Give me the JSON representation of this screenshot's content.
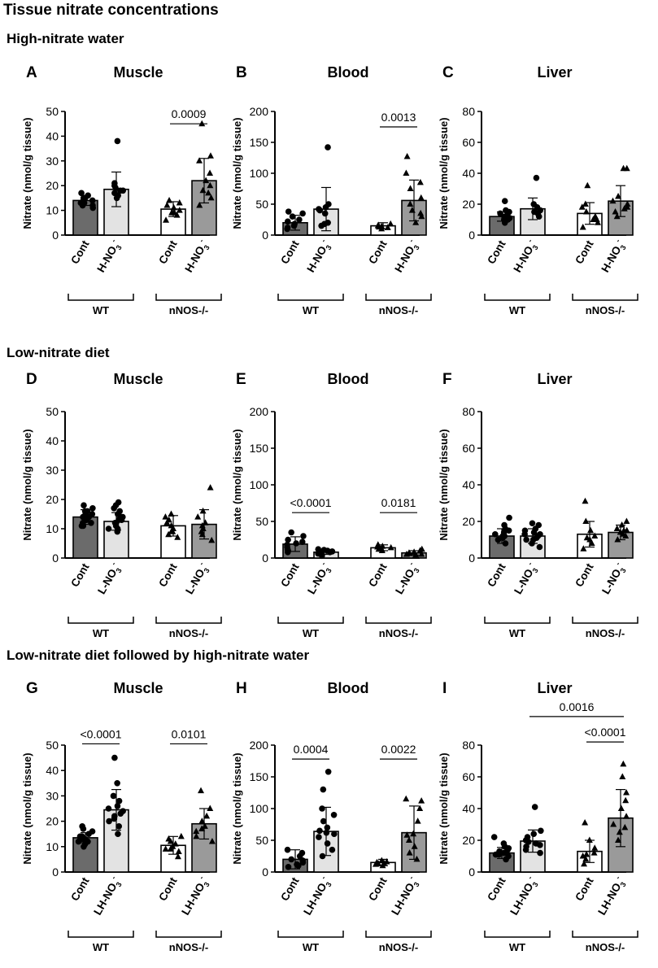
{
  "figure": {
    "title": "Tissue nitrate concentrations",
    "sections": [
      "High-nitrate water",
      "Low-nitrate diet",
      "Low-nitrate diet followed by high-nitrate water"
    ],
    "y_axis_label": "Nitrate (nmol/g tissue)",
    "group_labels": [
      "WT",
      "nNOS-/-"
    ],
    "colors": {
      "cont_wt": "#6b6b6b",
      "treat_wt": "#e3e3e3",
      "cont_nnos": "#ffffff",
      "treat_nnos": "#9a9a9a",
      "axis": "#000000"
    }
  },
  "chart_data": [
    {
      "id": "A",
      "type": "bar",
      "title": "Muscle",
      "categories": [
        "Cont",
        "H-NO3-",
        "Cont",
        "H-NO3-"
      ],
      "category_labels": [
        [
          "Cont",
          ""
        ],
        [
          "H-NO",
          ""
        ],
        [
          "Cont",
          ""
        ],
        [
          "H-NO",
          ""
        ]
      ],
      "ion_marks": [
        null,
        {
          "sub": "3",
          "sup": "-"
        },
        null,
        {
          "sub": "3",
          "sup": "-"
        }
      ],
      "groups": [
        "WT",
        "nNOS-/-"
      ],
      "ylabel": "Nitrate (nmol/g tissue)",
      "ylim": [
        0,
        50
      ],
      "yticks": [
        0,
        10,
        20,
        30,
        40,
        50
      ],
      "values": [
        14,
        18.5,
        10.5,
        22
      ],
      "errors": [
        2,
        7,
        3,
        9
      ],
      "points": [
        [
          12,
          13,
          14,
          15,
          16,
          17,
          11,
          13,
          14,
          15,
          12
        ],
        [
          15,
          17,
          18,
          19,
          20,
          38,
          16,
          18,
          21
        ],
        [
          8,
          9,
          10,
          11,
          12,
          13,
          14,
          6,
          9
        ],
        [
          15,
          17,
          20,
          22,
          25,
          30,
          32,
          45,
          18,
          12
        ]
      ],
      "annotations": [
        {
          "label": "0.0009",
          "from": 2,
          "to": 3,
          "y": 45
        }
      ]
    },
    {
      "id": "B",
      "type": "bar",
      "title": "Blood",
      "categories": [
        "Cont",
        "H-NO3-",
        "Cont",
        "H-NO3-"
      ],
      "category_labels": [
        [
          "Cont",
          ""
        ],
        [
          "H-NO",
          ""
        ],
        [
          "Cont",
          ""
        ],
        [
          "H-NO",
          ""
        ]
      ],
      "ion_marks": [
        null,
        {
          "sub": "3",
          "sup": "-"
        },
        null,
        {
          "sub": "3",
          "sup": "-"
        }
      ],
      "groups": [
        "WT",
        "nNOS-/-"
      ],
      "ylabel": "Nitrate (nmol/g tissue)",
      "ylim": [
        0,
        200
      ],
      "yticks": [
        0,
        50,
        100,
        150,
        200
      ],
      "values": [
        20,
        42,
        15,
        56
      ],
      "errors": [
        12,
        35,
        5,
        33
      ],
      "points": [
        [
          10,
          15,
          18,
          22,
          25,
          30,
          35,
          38,
          12
        ],
        [
          15,
          20,
          35,
          40,
          45,
          50,
          142,
          18,
          42
        ],
        [
          10,
          12,
          14,
          15,
          16,
          18,
          13
        ],
        [
          20,
          30,
          40,
          50,
          60,
          75,
          85,
          100,
          127,
          35
        ]
      ],
      "annotations": [
        {
          "label": "0.0013",
          "from": 2,
          "to": 3,
          "y": 175
        }
      ]
    },
    {
      "id": "C",
      "type": "bar",
      "title": "Liver",
      "categories": [
        "Cont",
        "H-NO3-",
        "Cont",
        "H-NO3-"
      ],
      "category_labels": [
        [
          "Cont",
          ""
        ],
        [
          "H-NO",
          ""
        ],
        [
          "Cont",
          ""
        ],
        [
          "H-NO",
          ""
        ]
      ],
      "ion_marks": [
        null,
        {
          "sub": "3",
          "sup": "-"
        },
        null,
        {
          "sub": "3",
          "sup": "-"
        }
      ],
      "groups": [
        "WT",
        "nNOS-/-"
      ],
      "ylabel": "Nitrate (nmol/g tissue)",
      "ylim": [
        0,
        80
      ],
      "yticks": [
        0,
        20,
        40,
        60,
        80
      ],
      "values": [
        12,
        17,
        14,
        22
      ],
      "errors": [
        3,
        7,
        7,
        10
      ],
      "points": [
        [
          8,
          10,
          11,
          12,
          13,
          14,
          15,
          16,
          22,
          10
        ],
        [
          12,
          14,
          16,
          18,
          20,
          37,
          15
        ],
        [
          5,
          8,
          10,
          12,
          15,
          18,
          20,
          32,
          10
        ],
        [
          12,
          15,
          18,
          20,
          22,
          25,
          43,
          43,
          17
        ]
      ],
      "annotations": []
    },
    {
      "id": "D",
      "type": "bar",
      "title": "Muscle",
      "categories": [
        "Cont",
        "L-NO3-",
        "Cont",
        "L-NO3-"
      ],
      "category_labels": [
        [
          "Cont",
          ""
        ],
        [
          "L-NO",
          ""
        ],
        [
          "Cont",
          ""
        ],
        [
          "L-NO",
          ""
        ]
      ],
      "ion_marks": [
        null,
        {
          "sub": "3",
          "sup": "-"
        },
        null,
        {
          "sub": "3",
          "sup": "-"
        }
      ],
      "groups": [
        "WT",
        "nNOS-/-"
      ],
      "ylabel": "Nitrate (nmol/g tissue)",
      "ylim": [
        0,
        50
      ],
      "yticks": [
        0,
        10,
        20,
        30,
        40,
        50
      ],
      "values": [
        14,
        12.5,
        11,
        11.5
      ],
      "errors": [
        2.5,
        3,
        3.5,
        5
      ],
      "points": [
        [
          11,
          12,
          13,
          14,
          15,
          16,
          17,
          18,
          12,
          13,
          14,
          15,
          16,
          11
        ],
        [
          9,
          10,
          11,
          12,
          13,
          14,
          15,
          16,
          17,
          18,
          19,
          10,
          12,
          13,
          14
        ],
        [
          7,
          8,
          9,
          10,
          11,
          12,
          13,
          14,
          15,
          9
        ],
        [
          6,
          8,
          10,
          12,
          14,
          16,
          24,
          9,
          11
        ]
      ],
      "annotations": []
    },
    {
      "id": "E",
      "type": "bar",
      "title": "Blood",
      "categories": [
        "Cont",
        "L-NO3-",
        "Cont",
        "L-NO3-"
      ],
      "category_labels": [
        [
          "Cont",
          ""
        ],
        [
          "L-NO",
          ""
        ],
        [
          "Cont",
          ""
        ],
        [
          "L-NO",
          ""
        ]
      ],
      "ion_marks": [
        null,
        {
          "sub": "3",
          "sup": "-"
        },
        null,
        {
          "sub": "3",
          "sup": "-"
        }
      ],
      "groups": [
        "WT",
        "nNOS-/-"
      ],
      "ylabel": "Nitrate (nmol/g tissue)",
      "ylim": [
        0,
        200
      ],
      "yticks": [
        0,
        50,
        100,
        150,
        200
      ],
      "values": [
        19,
        8,
        14,
        7
      ],
      "errors": [
        10,
        3,
        4,
        3
      ],
      "points": [
        [
          8,
          10,
          12,
          15,
          18,
          20,
          22,
          25,
          30,
          35
        ],
        [
          3,
          5,
          6,
          7,
          8,
          9,
          10,
          11,
          12,
          8
        ],
        [
          10,
          12,
          14,
          15,
          16,
          18,
          12
        ],
        [
          3,
          4,
          5,
          6,
          7,
          8,
          10,
          12,
          5
        ]
      ],
      "annotations": [
        {
          "label": "<0.0001",
          "from": 0,
          "to": 1,
          "y": 62
        },
        {
          "label": "0.0181",
          "from": 2,
          "to": 3,
          "y": 62
        }
      ]
    },
    {
      "id": "F",
      "type": "bar",
      "title": "Liver",
      "categories": [
        "Cont",
        "L-NO3-",
        "Cont",
        "L-NO3-"
      ],
      "category_labels": [
        [
          "Cont",
          ""
        ],
        [
          "L-NO",
          ""
        ],
        [
          "Cont",
          ""
        ],
        [
          "L-NO",
          ""
        ]
      ],
      "ion_marks": [
        null,
        {
          "sub": "3",
          "sup": "-"
        },
        null,
        {
          "sub": "3",
          "sup": "-"
        }
      ],
      "groups": [
        "WT",
        "nNOS-/-"
      ],
      "ylabel": "Nitrate (nmol/g tissue)",
      "ylim": [
        0,
        80
      ],
      "yticks": [
        0,
        20,
        40,
        60,
        80
      ],
      "values": [
        12,
        12,
        13,
        14
      ],
      "errors": [
        4,
        4,
        7,
        4
      ],
      "points": [
        [
          8,
          10,
          11,
          12,
          13,
          14,
          15,
          16,
          18,
          22,
          12
        ],
        [
          6,
          8,
          10,
          11,
          12,
          13,
          14,
          15,
          16,
          18,
          19,
          10,
          13
        ],
        [
          5,
          8,
          10,
          12,
          15,
          20,
          31,
          11
        ],
        [
          10,
          12,
          14,
          15,
          16,
          18,
          20,
          13,
          15
        ]
      ],
      "annotations": []
    },
    {
      "id": "G",
      "type": "bar",
      "title": "Muscle",
      "categories": [
        "Cont",
        "LH-NO3-",
        "Cont",
        "LH-NO3-"
      ],
      "category_labels": [
        [
          "Cont",
          ""
        ],
        [
          "LH-NO",
          ""
        ],
        [
          "Cont",
          ""
        ],
        [
          "LH-NO",
          ""
        ]
      ],
      "ion_marks": [
        null,
        {
          "sub": "3",
          "sup": "-"
        },
        null,
        {
          "sub": "3",
          "sup": "-"
        }
      ],
      "groups": [
        "WT",
        "nNOS-/-"
      ],
      "ylabel": "Nitrate (nmol/g tissue)",
      "ylim": [
        0,
        50
      ],
      "yticks": [
        0,
        10,
        20,
        30,
        40,
        50
      ],
      "values": [
        13.5,
        24.5,
        10.5,
        19
      ],
      "errors": [
        2,
        8,
        3.5,
        6
      ],
      "points": [
        [
          10,
          11,
          12,
          13,
          14,
          15,
          16,
          17,
          18,
          12,
          13,
          14
        ],
        [
          15,
          18,
          20,
          22,
          24,
          25,
          26,
          28,
          30,
          35,
          45,
          21,
          23
        ],
        [
          6,
          8,
          9,
          10,
          11,
          12,
          13,
          14,
          9
        ],
        [
          12,
          14,
          16,
          18,
          20,
          22,
          25,
          32,
          17
        ]
      ],
      "annotations": [
        {
          "label": "<0.0001",
          "from": 0,
          "to": 1,
          "y": 50.5
        },
        {
          "label": "0.0101",
          "from": 2,
          "to": 3,
          "y": 50.5
        }
      ]
    },
    {
      "id": "H",
      "type": "bar",
      "title": "Blood",
      "categories": [
        "Cont",
        "LH-NO3-",
        "Cont",
        "LH-NO3-"
      ],
      "category_labels": [
        [
          "Cont",
          ""
        ],
        [
          "LH-NO",
          ""
        ],
        [
          "Cont",
          ""
        ],
        [
          "LH-NO",
          ""
        ]
      ],
      "ion_marks": [
        null,
        {
          "sub": "3",
          "sup": "-"
        },
        null,
        {
          "sub": "3",
          "sup": "-"
        }
      ],
      "groups": [
        "WT",
        "nNOS-/-"
      ],
      "ylabel": "Nitrate (nmol/g tissue)",
      "ylim": [
        0,
        200
      ],
      "yticks": [
        0,
        50,
        100,
        150,
        200
      ],
      "values": [
        20,
        64,
        15,
        62
      ],
      "errors": [
        15,
        38,
        5,
        42
      ],
      "points": [
        [
          8,
          10,
          12,
          15,
          20,
          25,
          30,
          35,
          18
        ],
        [
          25,
          35,
          45,
          55,
          60,
          65,
          70,
          80,
          90,
          100,
          130,
          158,
          62
        ],
        [
          10,
          12,
          14,
          15,
          16,
          18,
          13
        ],
        [
          20,
          30,
          40,
          50,
          60,
          80,
          100,
          112,
          115,
          58
        ]
      ],
      "annotations": [
        {
          "label": "0.0004",
          "from": 0,
          "to": 1,
          "y": 178
        },
        {
          "label": "0.0022",
          "from": 2,
          "to": 3,
          "y": 178
        }
      ]
    },
    {
      "id": "I",
      "type": "bar",
      "title": "Liver",
      "categories": [
        "Cont",
        "LH-NO3-",
        "Cont",
        "LH-NO3-"
      ],
      "category_labels": [
        [
          "Cont",
          ""
        ],
        [
          "LH-NO",
          ""
        ],
        [
          "Cont",
          ""
        ],
        [
          "LH-NO",
          ""
        ]
      ],
      "ion_marks": [
        null,
        {
          "sub": "3",
          "sup": "-"
        },
        null,
        {
          "sub": "3",
          "sup": "-"
        }
      ],
      "groups": [
        "WT",
        "nNOS-/-"
      ],
      "ylabel": "Nitrate (nmol/g tissue)",
      "ylim": [
        0,
        80
      ],
      "yticks": [
        0,
        20,
        40,
        60,
        80
      ],
      "values": [
        12,
        19.5,
        13,
        34
      ],
      "errors": [
        3.5,
        7,
        7,
        18
      ],
      "points": [
        [
          8,
          10,
          11,
          12,
          13,
          14,
          15,
          16,
          18,
          22,
          11
        ],
        [
          12,
          14,
          16,
          18,
          20,
          22,
          24,
          26,
          41,
          17,
          19
        ],
        [
          5,
          8,
          10,
          12,
          15,
          20,
          31,
          11
        ],
        [
          20,
          25,
          30,
          35,
          40,
          45,
          50,
          60,
          68,
          28
        ]
      ],
      "annotations": [
        {
          "label": "0.0016",
          "from": 1,
          "to": 3,
          "y": 98
        },
        {
          "label": "<0.0001",
          "from": 2,
          "to": 3,
          "y": 82
        }
      ]
    }
  ]
}
